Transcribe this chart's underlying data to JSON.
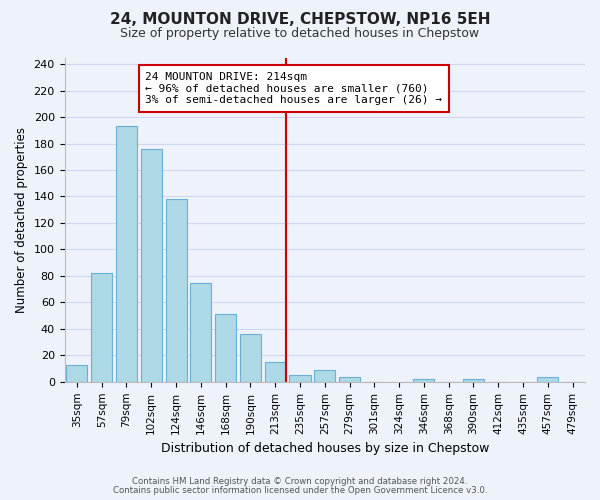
{
  "title": "24, MOUNTON DRIVE, CHEPSTOW, NP16 5EH",
  "subtitle": "Size of property relative to detached houses in Chepstow",
  "xlabel": "Distribution of detached houses by size in Chepstow",
  "ylabel": "Number of detached properties",
  "bar_labels": [
    "35sqm",
    "57sqm",
    "79sqm",
    "102sqm",
    "124sqm",
    "146sqm",
    "168sqm",
    "190sqm",
    "213sqm",
    "235sqm",
    "257sqm",
    "279sqm",
    "301sqm",
    "324sqm",
    "346sqm",
    "368sqm",
    "390sqm",
    "412sqm",
    "435sqm",
    "457sqm",
    "479sqm"
  ],
  "bar_values": [
    13,
    82,
    193,
    176,
    138,
    75,
    51,
    36,
    15,
    5,
    9,
    4,
    0,
    0,
    2,
    0,
    2,
    0,
    0,
    4,
    0
  ],
  "bar_color": "#add8e6",
  "bar_edge_color": "#6ab0d4",
  "vline_x_index": 8,
  "vline_color": "#cc0000",
  "ylim": [
    0,
    245
  ],
  "yticks": [
    0,
    20,
    40,
    60,
    80,
    100,
    120,
    140,
    160,
    180,
    200,
    220,
    240
  ],
  "annotation_title": "24 MOUNTON DRIVE: 214sqm",
  "annotation_line1": "← 96% of detached houses are smaller (760)",
  "annotation_line2": "3% of semi-detached houses are larger (26) →",
  "annotation_box_color": "#ffffff",
  "annotation_box_edge": "#cc0000",
  "footer_line1": "Contains HM Land Registry data © Crown copyright and database right 2024.",
  "footer_line2": "Contains public sector information licensed under the Open Government Licence v3.0.",
  "bg_color": "#eef2fb",
  "grid_color": "#d0d8f0"
}
